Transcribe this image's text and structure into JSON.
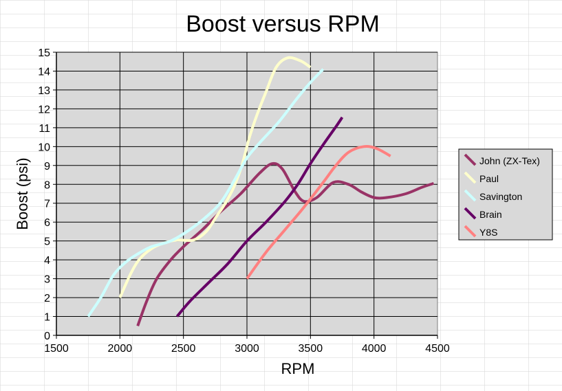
{
  "chart_data": {
    "type": "line",
    "title": "Boost versus RPM",
    "xlabel": "RPM",
    "ylabel": "Boost (psi)",
    "xlim": [
      1500,
      4500
    ],
    "ylim": [
      0,
      15
    ],
    "x_ticks": [
      "1500",
      "2000",
      "2500",
      "3000",
      "3500",
      "4000",
      "4500"
    ],
    "y_ticks": [
      "0",
      "1",
      "2",
      "3",
      "4",
      "5",
      "6",
      "7",
      "8",
      "9",
      "10",
      "11",
      "12",
      "13",
      "14",
      "15"
    ],
    "grid": true,
    "legend_position": "right",
    "plot_background": "#d9d9d9",
    "series": [
      {
        "name": "John (ZX-Tex)",
        "color": "#993366",
        "points": [
          [
            2140,
            0.5
          ],
          [
            2210,
            1.8
          ],
          [
            2290,
            3.0
          ],
          [
            2400,
            4.0
          ],
          [
            2500,
            4.7
          ],
          [
            2650,
            5.6
          ],
          [
            2800,
            6.6
          ],
          [
            2950,
            7.5
          ],
          [
            3100,
            8.6
          ],
          [
            3200,
            9.1
          ],
          [
            3280,
            8.8
          ],
          [
            3380,
            7.6
          ],
          [
            3450,
            7.1
          ],
          [
            3550,
            7.3
          ],
          [
            3680,
            8.1
          ],
          [
            3800,
            8.0
          ],
          [
            3900,
            7.6
          ],
          [
            4000,
            7.3
          ],
          [
            4100,
            7.3
          ],
          [
            4250,
            7.5
          ],
          [
            4380,
            7.85
          ],
          [
            4470,
            8.05
          ]
        ]
      },
      {
        "name": "Paul",
        "color": "#ffffcc",
        "points": [
          [
            2000,
            2.0
          ],
          [
            2080,
            3.2
          ],
          [
            2150,
            4.0
          ],
          [
            2250,
            4.6
          ],
          [
            2350,
            4.9
          ],
          [
            2450,
            5.05
          ],
          [
            2580,
            5.05
          ],
          [
            2680,
            5.5
          ],
          [
            2760,
            6.3
          ],
          [
            2830,
            7.0
          ],
          [
            2900,
            7.9
          ],
          [
            2960,
            9.0
          ],
          [
            3020,
            10.5
          ],
          [
            3080,
            11.7
          ],
          [
            3150,
            12.9
          ],
          [
            3230,
            14.2
          ],
          [
            3320,
            14.7
          ],
          [
            3420,
            14.55
          ],
          [
            3500,
            14.2
          ]
        ]
      },
      {
        "name": "Savington",
        "color": "#ccffff",
        "points": [
          [
            1750,
            1.0
          ],
          [
            1850,
            2.0
          ],
          [
            1950,
            3.2
          ],
          [
            2050,
            3.9
          ],
          [
            2150,
            4.35
          ],
          [
            2250,
            4.7
          ],
          [
            2400,
            5.0
          ],
          [
            2550,
            5.6
          ],
          [
            2700,
            6.4
          ],
          [
            2800,
            7.1
          ],
          [
            2900,
            8.2
          ],
          [
            3000,
            9.4
          ],
          [
            3100,
            10.2
          ],
          [
            3250,
            11.3
          ],
          [
            3400,
            12.6
          ],
          [
            3500,
            13.4
          ],
          [
            3600,
            14.1
          ]
        ]
      },
      {
        "name": "Brain",
        "color": "#660066",
        "points": [
          [
            2450,
            1.0
          ],
          [
            2550,
            1.8
          ],
          [
            2700,
            2.8
          ],
          [
            2850,
            3.8
          ],
          [
            3000,
            5.0
          ],
          [
            3150,
            6.0
          ],
          [
            3300,
            7.1
          ],
          [
            3400,
            8.0
          ],
          [
            3500,
            9.1
          ],
          [
            3600,
            10.1
          ],
          [
            3700,
            11.05
          ],
          [
            3750,
            11.55
          ]
        ]
      },
      {
        "name": "Y8S",
        "color": "#ff8080",
        "points": [
          [
            3000,
            3.0
          ],
          [
            3150,
            4.4
          ],
          [
            3300,
            5.6
          ],
          [
            3450,
            6.8
          ],
          [
            3600,
            8.1
          ],
          [
            3700,
            9.0
          ],
          [
            3800,
            9.7
          ],
          [
            3920,
            10.0
          ],
          [
            4020,
            9.9
          ],
          [
            4130,
            9.5
          ]
        ]
      }
    ]
  }
}
